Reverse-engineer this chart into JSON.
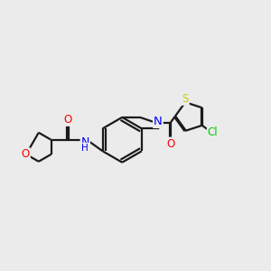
{
  "background_color": "#ebebeb",
  "bond_color": "#1a1a1a",
  "atom_colors": {
    "O": "#ff0000",
    "N": "#0000ff",
    "S": "#cccc00",
    "Cl": "#00cc00"
  },
  "line_width": 1.6,
  "font_size": 8.5
}
